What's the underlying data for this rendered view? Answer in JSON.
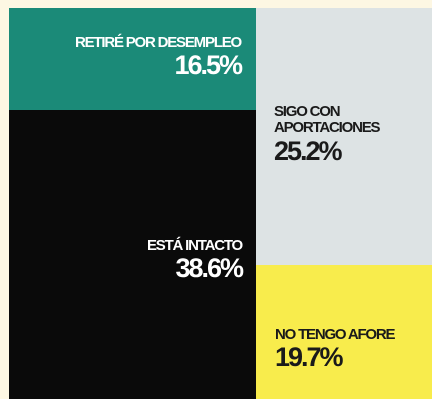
{
  "chart_data": {
    "type": "treemap",
    "unit": "%",
    "segments": [
      {
        "key": "retire",
        "label": "RETIRÉ POR DESEMPLEO",
        "value_text": "16.5%",
        "value": 16.5,
        "color": "#1b8a78"
      },
      {
        "key": "intacto",
        "label": "ESTÁ INTACTO",
        "value_text": "38.6%",
        "value": 38.6,
        "color": "#0a0a0a"
      },
      {
        "key": "aport",
        "label": "SIGO CON APORTACIONES",
        "value_text": "25.2%",
        "value": 25.2,
        "color": "#dde3e4"
      },
      {
        "key": "noafore",
        "label": "NO TENGO AFORE",
        "value_text": "19.7%",
        "value": 19.7,
        "color": "#f8ec4c"
      }
    ]
  }
}
